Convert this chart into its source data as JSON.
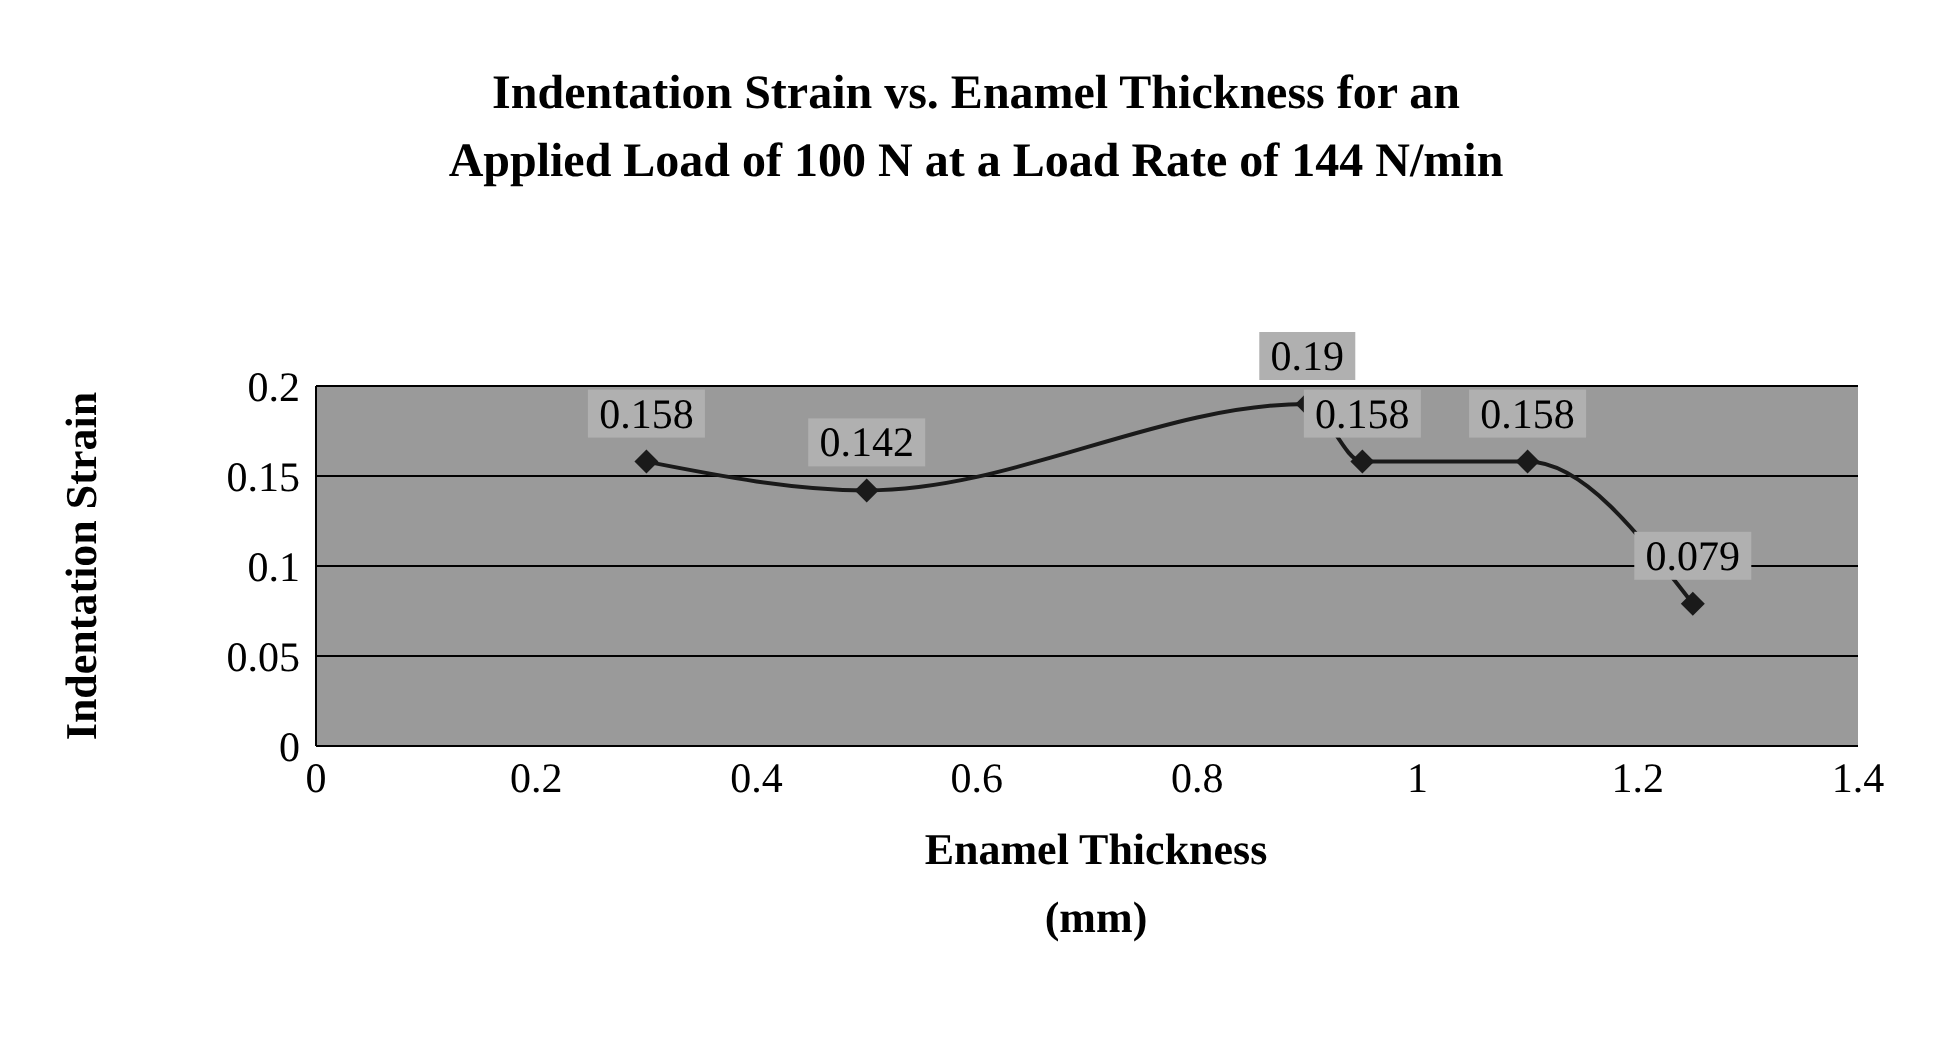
{
  "chart_data": {
    "type": "line",
    "title": "Indentation Strain vs. Enamel Thickness for an Applied Load of 100 N at a Load Rate of 144 N/min",
    "xlabel": "Enamel Thickness (mm)",
    "ylabel": "Indentation Strain",
    "x": [
      0.3,
      0.5,
      0.9,
      0.95,
      1.1,
      1.25
    ],
    "series": [
      {
        "color": "#1a1a1a",
        "values": [
          0.158,
          0.142,
          0.19,
          0.158,
          0.158,
          0.079
        ]
      }
    ],
    "xlim": [
      0,
      1.4
    ],
    "xticks": [
      0,
      0.2,
      0.4,
      0.6,
      0.8,
      1,
      1.2,
      1.4
    ],
    "ylim": [
      0,
      0.2
    ],
    "yticks": [
      0,
      0.05,
      0.1,
      0.15,
      0.2
    ],
    "grid": "y",
    "marker": "diamond",
    "line_style": "solid",
    "data_labels": true,
    "legend": false
  }
}
